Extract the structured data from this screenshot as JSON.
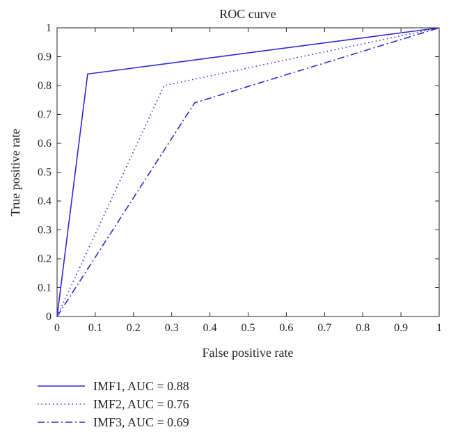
{
  "chart_data": {
    "type": "line",
    "title": "ROC curve",
    "xlabel": "False positive rate",
    "ylabel": "True positive rate",
    "xlim": [
      0,
      1
    ],
    "ylim": [
      0,
      1
    ],
    "xticks": [
      "0",
      "0.1",
      "0.2",
      "0.3",
      "0.4",
      "0.5",
      "0.6",
      "0.7",
      "0.8",
      "0.9",
      "1"
    ],
    "yticks": [
      "0",
      "0.1",
      "0.2",
      "0.3",
      "0.4",
      "0.5",
      "0.6",
      "0.7",
      "0.8",
      "0.9",
      "1"
    ],
    "grid": false,
    "legend_position": "below",
    "series": [
      {
        "name": "IMF1, AUC = 0.88",
        "style": "solid",
        "color": "#2a2ad0",
        "points": [
          [
            0,
            0
          ],
          [
            0.08,
            0.84
          ],
          [
            1,
            1
          ]
        ]
      },
      {
        "name": "IMF2, AUC = 0.76",
        "style": "dotted",
        "color": "#2a2ad0",
        "points": [
          [
            0,
            0
          ],
          [
            0.28,
            0.8
          ],
          [
            1,
            1
          ]
        ]
      },
      {
        "name": "IMF3, AUC = 0.69",
        "style": "dashdot",
        "color": "#2a2ad0",
        "points": [
          [
            0,
            0
          ],
          [
            0.36,
            0.74
          ],
          [
            1,
            1
          ]
        ]
      }
    ]
  }
}
